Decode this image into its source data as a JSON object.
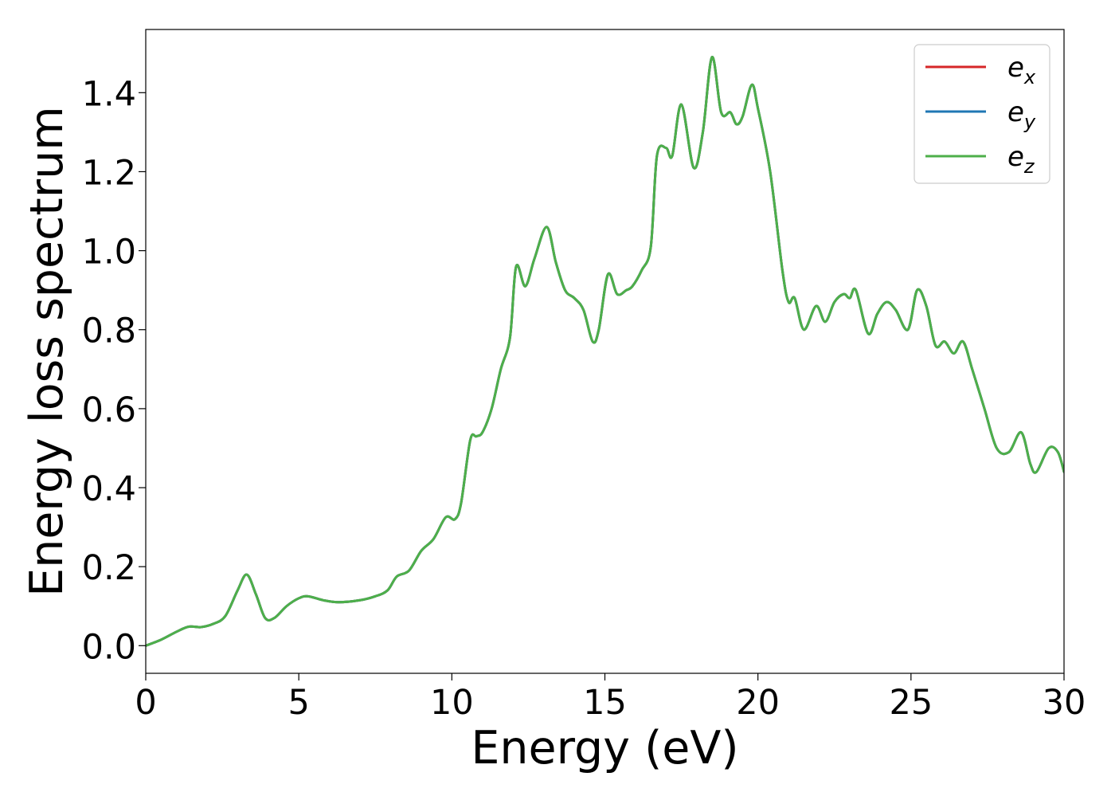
{
  "chart_data": {
    "type": "line",
    "title": "",
    "xlabel": "Energy (eV)",
    "ylabel": "Energy loss spectrum",
    "xlim": [
      0,
      30
    ],
    "ylim": [
      -0.07,
      1.56
    ],
    "x_ticks": [
      0,
      5,
      10,
      15,
      20,
      25,
      30
    ],
    "x_tick_labels": [
      "0",
      "5",
      "10",
      "15",
      "20",
      "25",
      "30"
    ],
    "y_ticks": [
      0.0,
      0.2,
      0.4,
      0.6,
      0.8,
      1.0,
      1.2,
      1.4
    ],
    "y_tick_labels": [
      "0.0",
      "0.2",
      "0.4",
      "0.6",
      "0.8",
      "1.0",
      "1.2",
      "1.4"
    ],
    "grid": false,
    "legend_position": "top-right",
    "legend": [
      {
        "base": "e",
        "sub": "x",
        "color": "#d62728"
      },
      {
        "base": "e",
        "sub": "y",
        "color": "#1f77b4"
      },
      {
        "base": "e",
        "sub": "z",
        "color": "#4daf4a"
      }
    ],
    "x": [
      0,
      0.5,
      1.0,
      1.4,
      1.8,
      2.2,
      2.6,
      3.0,
      3.3,
      3.6,
      3.9,
      4.2,
      4.6,
      5.0,
      5.3,
      5.8,
      6.3,
      7.0,
      7.5,
      7.9,
      8.2,
      8.6,
      9.0,
      9.4,
      9.8,
      10.1,
      10.3,
      10.6,
      10.8,
      11.0,
      11.3,
      11.6,
      11.9,
      12.1,
      12.4,
      12.7,
      13.1,
      13.4,
      13.7,
      14.0,
      14.3,
      14.6,
      14.8,
      15.1,
      15.4,
      15.7,
      15.9,
      16.2,
      16.5,
      16.7,
      17.0,
      17.2,
      17.5,
      17.9,
      18.2,
      18.5,
      18.8,
      19.1,
      19.3,
      19.5,
      19.8,
      20.0,
      20.4,
      20.8,
      21.0,
      21.2,
      21.5,
      21.9,
      22.2,
      22.5,
      22.8,
      23.0,
      23.2,
      23.6,
      23.9,
      24.2,
      24.5,
      24.9,
      25.2,
      25.5,
      25.8,
      26.1,
      26.4,
      26.7,
      27.0,
      27.4,
      27.8,
      28.2,
      28.6,
      28.9,
      29.1,
      29.5,
      29.8,
      30.0
    ],
    "series": [
      {
        "name": "",
        "color": "#d62728",
        "values": [
          0.0,
          0.015,
          0.035,
          0.048,
          0.047,
          0.055,
          0.075,
          0.14,
          0.18,
          0.13,
          0.07,
          0.07,
          0.1,
          0.12,
          0.125,
          0.115,
          0.11,
          0.115,
          0.125,
          0.14,
          0.175,
          0.19,
          0.24,
          0.27,
          0.325,
          0.32,
          0.36,
          0.52,
          0.53,
          0.54,
          0.6,
          0.7,
          0.78,
          0.96,
          0.91,
          0.98,
          1.06,
          0.97,
          0.9,
          0.88,
          0.85,
          0.77,
          0.8,
          0.94,
          0.89,
          0.9,
          0.91,
          0.95,
          1.01,
          1.24,
          1.26,
          1.24,
          1.37,
          1.21,
          1.3,
          1.49,
          1.35,
          1.35,
          1.32,
          1.34,
          1.42,
          1.36,
          1.2,
          0.95,
          0.87,
          0.88,
          0.8,
          0.86,
          0.82,
          0.87,
          0.89,
          0.88,
          0.9,
          0.79,
          0.84,
          0.87,
          0.85,
          0.8,
          0.9,
          0.86,
          0.76,
          0.77,
          0.74,
          0.77,
          0.7,
          0.6,
          0.5,
          0.49,
          0.54,
          0.46,
          0.44,
          0.5,
          0.49,
          0.44
        ]
      },
      {
        "name": "",
        "color": "#1f77b4",
        "values": [
          0.0,
          0.015,
          0.035,
          0.048,
          0.047,
          0.055,
          0.075,
          0.14,
          0.18,
          0.13,
          0.07,
          0.07,
          0.1,
          0.12,
          0.125,
          0.115,
          0.11,
          0.115,
          0.125,
          0.14,
          0.175,
          0.19,
          0.24,
          0.27,
          0.325,
          0.32,
          0.36,
          0.52,
          0.53,
          0.54,
          0.6,
          0.7,
          0.78,
          0.96,
          0.91,
          0.98,
          1.06,
          0.97,
          0.9,
          0.88,
          0.85,
          0.77,
          0.8,
          0.94,
          0.89,
          0.9,
          0.91,
          0.95,
          1.01,
          1.24,
          1.26,
          1.24,
          1.37,
          1.21,
          1.3,
          1.49,
          1.35,
          1.35,
          1.32,
          1.34,
          1.42,
          1.36,
          1.2,
          0.95,
          0.87,
          0.88,
          0.8,
          0.86,
          0.82,
          0.87,
          0.89,
          0.88,
          0.9,
          0.79,
          0.84,
          0.87,
          0.85,
          0.8,
          0.9,
          0.86,
          0.76,
          0.77,
          0.74,
          0.77,
          0.7,
          0.6,
          0.5,
          0.49,
          0.54,
          0.46,
          0.44,
          0.5,
          0.49,
          0.44
        ]
      },
      {
        "name": "",
        "color": "#4daf4a",
        "values": [
          0.0,
          0.015,
          0.035,
          0.048,
          0.047,
          0.055,
          0.075,
          0.14,
          0.18,
          0.13,
          0.07,
          0.07,
          0.1,
          0.12,
          0.125,
          0.115,
          0.11,
          0.115,
          0.125,
          0.14,
          0.175,
          0.19,
          0.24,
          0.27,
          0.325,
          0.32,
          0.36,
          0.52,
          0.53,
          0.54,
          0.6,
          0.7,
          0.78,
          0.96,
          0.91,
          0.98,
          1.06,
          0.97,
          0.9,
          0.88,
          0.85,
          0.77,
          0.8,
          0.94,
          0.89,
          0.9,
          0.91,
          0.95,
          1.01,
          1.24,
          1.26,
          1.24,
          1.37,
          1.21,
          1.3,
          1.49,
          1.35,
          1.35,
          1.32,
          1.34,
          1.42,
          1.36,
          1.2,
          0.95,
          0.87,
          0.88,
          0.8,
          0.86,
          0.82,
          0.87,
          0.89,
          0.88,
          0.9,
          0.79,
          0.84,
          0.87,
          0.85,
          0.8,
          0.9,
          0.86,
          0.76,
          0.77,
          0.74,
          0.77,
          0.7,
          0.6,
          0.5,
          0.49,
          0.54,
          0.46,
          0.44,
          0.5,
          0.49,
          0.44
        ]
      }
    ]
  }
}
